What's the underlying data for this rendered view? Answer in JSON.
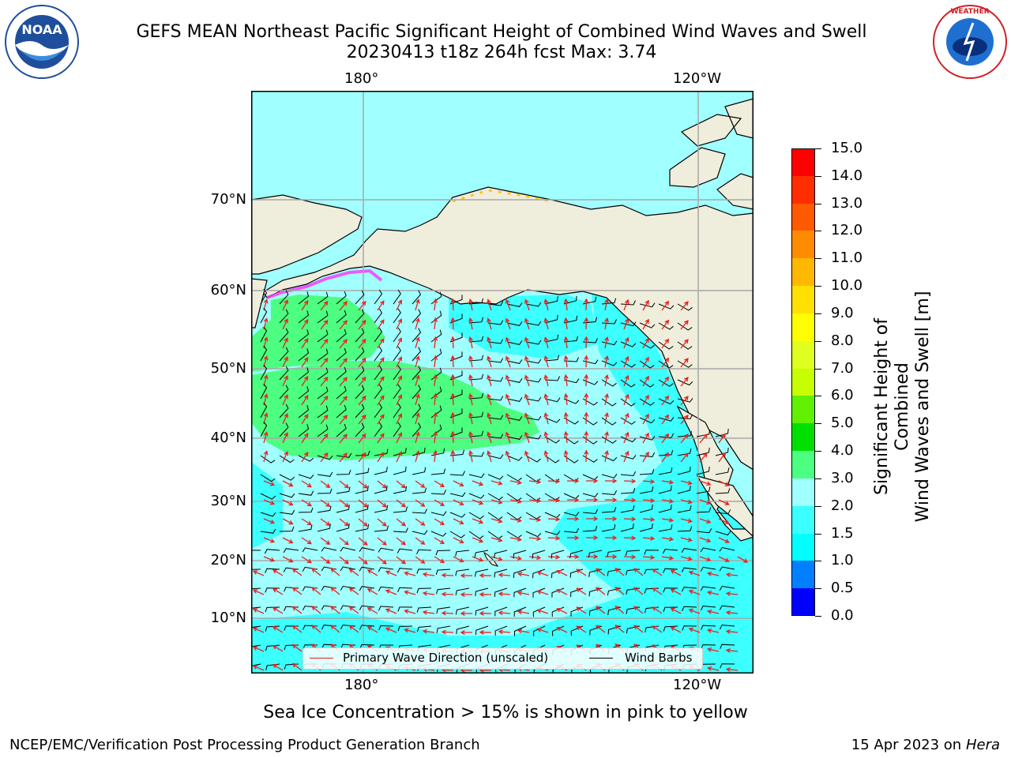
{
  "header": {
    "title_line1": "GEFS MEAN Northeast Pacific Significant Height of Combined Wind Waves and Swell",
    "title_line2": "20230413 t18z 264h fcst   Max: 3.74"
  },
  "logos": {
    "left": {
      "name": "NOAA",
      "ring_text": "NATIONAL OCEANIC AND ATMOSPHERIC ADMINISTRATION · U.S. DEPARTMENT OF COMMERCE",
      "color": "#1F4E9C"
    },
    "right": {
      "name": "NATIONAL WEATHER SERVICE",
      "color": "#D01F26"
    }
  },
  "map": {
    "lon_labels": [
      "180°",
      "120°W"
    ],
    "lat_labels": [
      "70°N",
      "60°N",
      "50°N",
      "40°N",
      "30°N",
      "20°N",
      "10°N"
    ],
    "land_color": "#EFEDDB",
    "grid": true
  },
  "legend": {
    "wave_label": "Primary Wave Direction (unscaled)",
    "wave_color": "#E8201E",
    "barb_label": "Wind Barbs",
    "barb_color": "#000000"
  },
  "colorbar": {
    "label_line1": "Significant Height of Combined",
    "label_line2": "Wind Waves and Swell [m]",
    "ticks": [
      "0.0",
      "0.5",
      "1.0",
      "1.5",
      "2.0",
      "3.0",
      "4.0",
      "5.0",
      "6.0",
      "7.0",
      "8.0",
      "9.0",
      "10.0",
      "11.0",
      "12.0",
      "13.0",
      "14.0",
      "15.0"
    ],
    "colors": [
      "#0000FF",
      "#0080FF",
      "#00FFFF",
      "#3CFFFF",
      "#A0FFFF",
      "#4CFF80",
      "#00E000",
      "#60F000",
      "#C8FF00",
      "#E0FF20",
      "#FFFF00",
      "#FFE000",
      "#FFB800",
      "#FF8C00",
      "#FF5A00",
      "#FF2E00",
      "#FF0000"
    ]
  },
  "footer": {
    "note": "Sea Ice Concentration > 15% is shown in pink to yellow",
    "credit": "NCEP/EMC/Verification Post Processing Product Generation Branch",
    "date": "15 Apr 2023 on",
    "machine": "Hera"
  }
}
